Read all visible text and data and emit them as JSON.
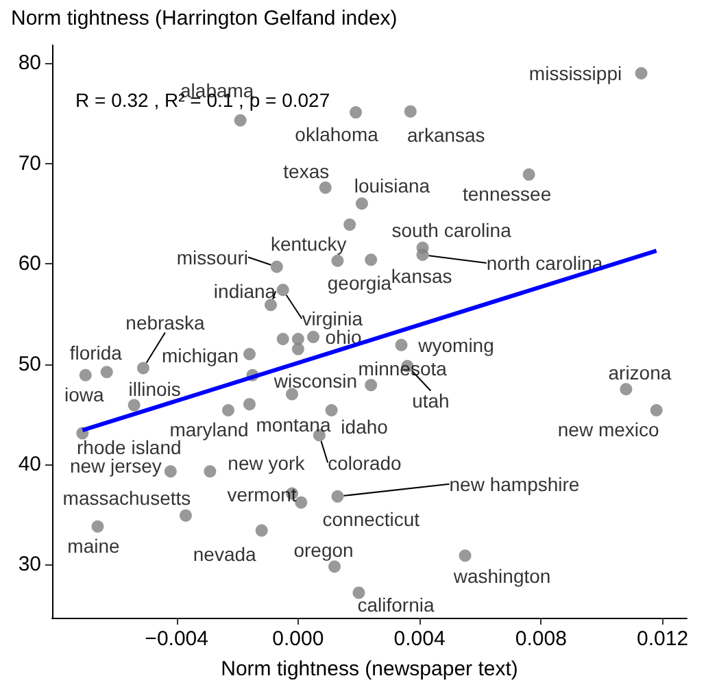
{
  "chart_data": {
    "type": "scatter",
    "ylabel": "Norm tightness (Harrington Gelfand index)",
    "xlabel": "Norm tightness (newspaper text)",
    "annotations": [
      "R = 0.32 , R² = 0.1 , p = 0.027"
    ],
    "xlim": [
      -0.0081,
      0.0128
    ],
    "ylim": [
      24.7,
      81.8
    ],
    "xticks": [
      {
        "value": -0.004,
        "label": "−0.004"
      },
      {
        "value": 0,
        "label": "0.000"
      },
      {
        "value": 0.004,
        "label": "0.004"
      },
      {
        "value": 0.008,
        "label": "0.008"
      },
      {
        "value": 0.012,
        "label": "0.012"
      }
    ],
    "yticks": [
      30,
      40,
      50,
      60,
      70,
      80
    ],
    "grid": false,
    "marker": "circle",
    "series": [
      {
        "color": "#808080",
        "x": [
          0.0113,
          -0.0019,
          0.0019,
          0.0037,
          0.0009,
          0.0021,
          0.0076,
          0.0041,
          0.0041,
          0.0017,
          -0.0007,
          0.0013,
          0.0024,
          -0.0009,
          -0.0005,
          -0.0051,
          -0.0016,
          0.0005,
          0.0034,
          -0.0063,
          -0.007,
          -0.0054,
          -0.0015,
          0.0024,
          0.0036,
          0.0108,
          0.0118,
          -0.0071,
          -0.0023,
          -0.0016,
          0.0011,
          -0.0042,
          -0.0029,
          0.0007,
          -0.0037,
          -0.0002,
          0.0013,
          0.0001,
          -0.0066,
          -0.0012,
          0.0012,
          0.0055,
          0.002,
          -0.0005,
          0,
          0,
          -0.0002
        ],
        "values": [
          79.0,
          74.3,
          75.1,
          75.2,
          67.6,
          66.0,
          68.9,
          61.6,
          60.9,
          63.9,
          59.7,
          60.3,
          60.4,
          55.9,
          57.4,
          49.6,
          51.0,
          52.7,
          51.9,
          49.2,
          48.9,
          45.9,
          48.9,
          47.9,
          49.8,
          47.5,
          45.4,
          43.1,
          45.4,
          46.0,
          45.4,
          39.3,
          39.3,
          42.9,
          34.9,
          37.1,
          36.8,
          36.2,
          33.8,
          33.4,
          29.8,
          30.9,
          27.2,
          52.5,
          52.5,
          51.5,
          47.0
        ],
        "value_labels": [
          "mississippi",
          "alabama",
          "oklahoma",
          "arkansas",
          "texas",
          "louisiana",
          "tennessee",
          "south carolina",
          "north carolina",
          "kentucky",
          "missouri",
          "georgia",
          "kansas",
          "indiana",
          "virginia",
          "nebraska",
          "michigan",
          "ohio",
          "wyoming",
          "florida",
          "iowa",
          "illinois",
          "wisconsin",
          "minnesota",
          "utah",
          "arizona",
          "new mexico",
          "rhode island",
          "maryland",
          "montana",
          "idaho",
          "new jersey",
          "new york",
          "colorado",
          "massachusetts",
          "vermont",
          "new hampshire",
          "connecticut",
          "maine",
          "nevada",
          "oregon",
          "washington",
          "california",
          null,
          null,
          null,
          null
        ]
      },
      {
        "type": "line",
        "marker": "none",
        "color": "#0000ff",
        "x": [
          -0.0071,
          0.0118
        ],
        "values": [
          43.4,
          61.3
        ]
      }
    ]
  }
}
